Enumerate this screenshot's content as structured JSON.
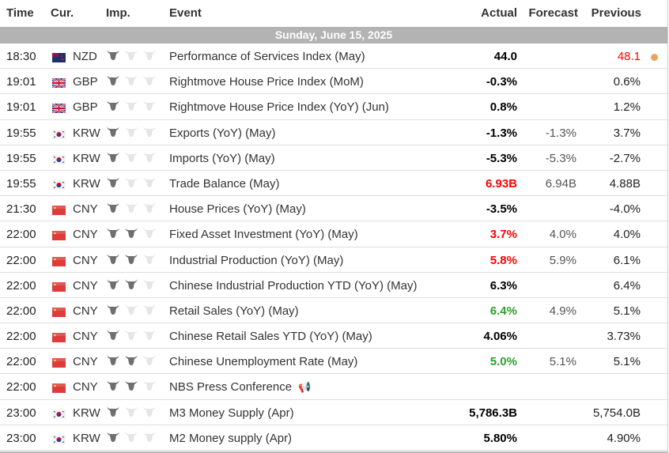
{
  "header": {
    "time": "Time",
    "currency": "Cur.",
    "importance": "Imp.",
    "event": "Event",
    "actual": "Actual",
    "forecast": "Forecast",
    "previous": "Previous"
  },
  "date_label": "Sunday, June 15, 2025",
  "colors": {
    "red": "#ff0000",
    "green": "#2ca02c",
    "dot": "#e8a75a",
    "datebar": "#b3b3b3"
  },
  "rows": [
    {
      "time": "18:30",
      "country": "NZ",
      "currency": "NZD",
      "importance": 1,
      "event": "Performance of Services Index (May)",
      "actual": "44.0",
      "actual_color": "black",
      "forecast": "",
      "previous": "48.1",
      "previous_color": "red",
      "dot": true
    },
    {
      "time": "19:01",
      "country": "GB",
      "currency": "GBP",
      "importance": 1,
      "event": "Rightmove House Price Index (MoM)",
      "actual": "-0.3%",
      "actual_color": "black",
      "forecast": "",
      "previous": "0.6%"
    },
    {
      "time": "19:01",
      "country": "GB",
      "currency": "GBP",
      "importance": 1,
      "event": "Rightmove House Price Index (YoY) (Jun)",
      "actual": "0.8%",
      "actual_color": "black",
      "forecast": "",
      "previous": "1.2%"
    },
    {
      "time": "19:55",
      "country": "KR",
      "currency": "KRW",
      "importance": 1,
      "event": "Exports (YoY) (May)",
      "actual": "-1.3%",
      "actual_color": "black",
      "forecast": "-1.3%",
      "previous": "3.7%"
    },
    {
      "time": "19:55",
      "country": "KR",
      "currency": "KRW",
      "importance": 1,
      "event": "Imports (YoY) (May)",
      "actual": "-5.3%",
      "actual_color": "black",
      "forecast": "-5.3%",
      "previous": "-2.7%"
    },
    {
      "time": "19:55",
      "country": "KR",
      "currency": "KRW",
      "importance": 1,
      "event": "Trade Balance (May)",
      "actual": "6.93B",
      "actual_color": "red",
      "forecast": "6.94B",
      "previous": "4.88B"
    },
    {
      "time": "21:30",
      "country": "CN",
      "currency": "CNY",
      "importance": 1,
      "event": "House Prices (YoY) (May)",
      "actual": "-3.5%",
      "actual_color": "black",
      "forecast": "",
      "previous": "-4.0%"
    },
    {
      "time": "22:00",
      "country": "CN",
      "currency": "CNY",
      "importance": 2,
      "event": "Fixed Asset Investment (YoY) (May)",
      "actual": "3.7%",
      "actual_color": "red",
      "forecast": "4.0%",
      "previous": "4.0%"
    },
    {
      "time": "22:00",
      "country": "CN",
      "currency": "CNY",
      "importance": 2,
      "event": "Industrial Production (YoY) (May)",
      "actual": "5.8%",
      "actual_color": "red",
      "forecast": "5.9%",
      "previous": "6.1%"
    },
    {
      "time": "22:00",
      "country": "CN",
      "currency": "CNY",
      "importance": 2,
      "event": "Chinese Industrial Production YTD (YoY) (May)",
      "actual": "6.3%",
      "actual_color": "black",
      "forecast": "",
      "previous": "6.4%"
    },
    {
      "time": "22:00",
      "country": "CN",
      "currency": "CNY",
      "importance": 1,
      "event": "Retail Sales (YoY) (May)",
      "actual": "6.4%",
      "actual_color": "green",
      "forecast": "4.9%",
      "previous": "5.1%"
    },
    {
      "time": "22:00",
      "country": "CN",
      "currency": "CNY",
      "importance": 1,
      "event": "Chinese Retail Sales YTD (YoY) (May)",
      "actual": "4.06%",
      "actual_color": "black",
      "forecast": "",
      "previous": "3.73%"
    },
    {
      "time": "22:00",
      "country": "CN",
      "currency": "CNY",
      "importance": 2,
      "event": "Chinese Unemployment Rate (May)",
      "actual": "5.0%",
      "actual_color": "green",
      "forecast": "5.1%",
      "previous": "5.1%"
    },
    {
      "time": "22:00",
      "country": "CN",
      "currency": "CNY",
      "importance": 2,
      "event": "NBS Press Conference",
      "actual": "",
      "forecast": "",
      "previous": "",
      "speech": true
    },
    {
      "time": "23:00",
      "country": "KR",
      "currency": "KRW",
      "importance": 1,
      "event": "M3 Money Supply (Apr)",
      "actual": "5,786.3B",
      "actual_color": "black",
      "forecast": "",
      "previous": "5,754.0B"
    },
    {
      "time": "23:00",
      "country": "KR",
      "currency": "KRW",
      "importance": 1,
      "event": "M2 Money supply (Apr)",
      "actual": "5.80%",
      "actual_color": "black",
      "forecast": "",
      "previous": "4.90%"
    }
  ]
}
